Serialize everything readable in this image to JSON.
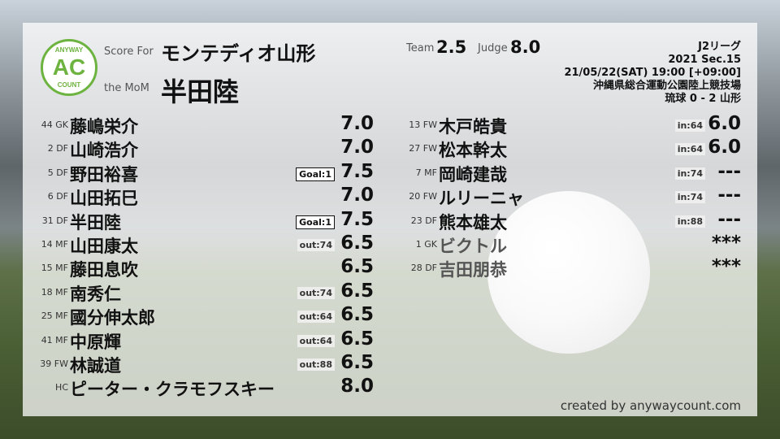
{
  "header": {
    "score_for_label": "Score For",
    "team_name": "モンテディオ山形",
    "mom_label": "the MoM",
    "mom_name": "半田陸",
    "team_label": "Team",
    "team_score": "2.5",
    "judge_label": "Judge",
    "judge_score": "8.0"
  },
  "logo": {
    "top": "ANYWAY",
    "mid": "AC",
    "bottom": "COUNT",
    "color": "#6db33f"
  },
  "match": {
    "league": "J2リーグ",
    "section": "2021 Sec.15",
    "datetime": "21/05/22(SAT) 19:00 [+09:00]",
    "venue": "沖縄県総合運動公園陸上競技場",
    "result": "琉球 0 - 2 山形"
  },
  "starters": [
    {
      "num": "44 GK",
      "name": "藤嶋栄介",
      "badge": "",
      "score": "7.0"
    },
    {
      "num": "2 DF",
      "name": "山崎浩介",
      "badge": "",
      "score": "7.0"
    },
    {
      "num": "5 DF",
      "name": "野田裕喜",
      "badge": "Goal:1",
      "score": "7.5"
    },
    {
      "num": "6 DF",
      "name": "山田拓巳",
      "badge": "",
      "score": "7.0"
    },
    {
      "num": "31 DF",
      "name": "半田陸",
      "badge": "Goal:1",
      "score": "7.5"
    },
    {
      "num": "14 MF",
      "name": "山田康太",
      "badge": "out:74",
      "score": "6.5"
    },
    {
      "num": "15 MF",
      "name": "藤田息吹",
      "badge": "",
      "score": "6.5"
    },
    {
      "num": "18 MF",
      "name": "南秀仁",
      "badge": "out:74",
      "score": "6.5"
    },
    {
      "num": "25 MF",
      "name": "國分伸太郎",
      "badge": "out:64",
      "score": "6.5"
    },
    {
      "num": "41 MF",
      "name": "中原輝",
      "badge": "out:64",
      "score": "6.5"
    },
    {
      "num": "39 FW",
      "name": "林誠道",
      "badge": "out:88",
      "score": "6.5"
    },
    {
      "num": "HC",
      "name": "ピーター・クラモフスキー",
      "badge": "",
      "score": "8.0"
    }
  ],
  "subs": [
    {
      "num": "13 FW",
      "name": "木戸皓貴",
      "badge": "in:64",
      "score": "6.0"
    },
    {
      "num": "27 FW",
      "name": "松本幹太",
      "badge": "in:64",
      "score": "6.0"
    },
    {
      "num": "7 MF",
      "name": "岡崎建哉",
      "badge": "in:74",
      "score": "---"
    },
    {
      "num": "20 FW",
      "name": "ルリーニャ",
      "badge": "in:74",
      "score": "---"
    },
    {
      "num": "23 DF",
      "name": "熊本雄太",
      "badge": "in:88",
      "score": "---"
    },
    {
      "num": "1 GK",
      "name": "ビクトル",
      "badge": "",
      "score": "***"
    },
    {
      "num": "28 DF",
      "name": "吉田朋恭",
      "badge": "",
      "score": "***"
    }
  ],
  "credit": "created by anywaycount.com"
}
